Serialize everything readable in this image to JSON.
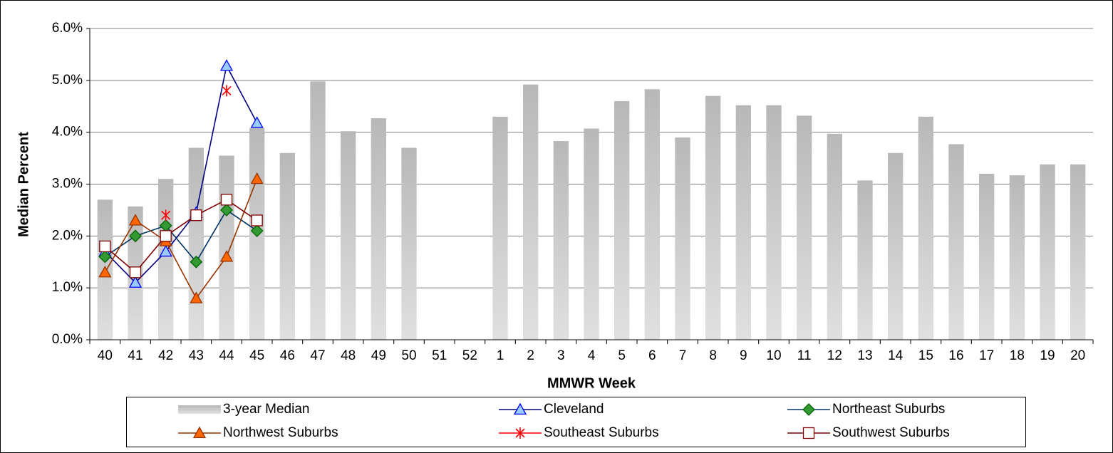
{
  "chart_data": {
    "type": "bar_line",
    "x_label": "MMWR Week",
    "y_label": "Median Percent",
    "categories": [
      "40",
      "41",
      "42",
      "43",
      "44",
      "45",
      "46",
      "47",
      "48",
      "49",
      "50",
      "51",
      "52",
      "1",
      "2",
      "3",
      "4",
      "5",
      "6",
      "7",
      "8",
      "9",
      "10",
      "11",
      "12",
      "13",
      "14",
      "15",
      "16",
      "17",
      "18",
      "19",
      "20"
    ],
    "ylim": [
      0,
      6
    ],
    "yticks": [
      {
        "value": 0,
        "label": "0.0%"
      },
      {
        "value": 1,
        "label": "1.0%"
      },
      {
        "value": 2,
        "label": "2.0%"
      },
      {
        "value": 3,
        "label": "3.0%"
      },
      {
        "value": 4,
        "label": "4.0%"
      },
      {
        "value": 5,
        "label": "5.0%"
      },
      {
        "value": 6,
        "label": "6.0%"
      }
    ],
    "grid": true,
    "series": [
      {
        "name": "3-year Median",
        "kind": "bar",
        "color": "#c8c8c8",
        "values": [
          2.7,
          2.57,
          3.1,
          3.7,
          3.55,
          4.08,
          3.6,
          4.98,
          4.02,
          4.27,
          3.7,
          null,
          null,
          4.3,
          4.92,
          3.83,
          4.07,
          4.6,
          4.83,
          3.9,
          4.7,
          4.52,
          4.52,
          4.32,
          3.97,
          3.07,
          3.6,
          4.3,
          3.77,
          3.2,
          3.17,
          3.38,
          3.38
        ]
      },
      {
        "name": "Cleveland",
        "kind": "line",
        "color": "#000080",
        "marker": "triangle",
        "marker_color": "#99ccff",
        "marker_stroke": "#0000ff",
        "values": [
          1.7,
          1.1,
          1.7,
          2.45,
          5.28,
          4.18,
          null,
          null,
          null,
          null,
          null,
          null,
          null,
          null,
          null,
          null,
          null,
          null,
          null,
          null,
          null,
          null,
          null,
          null,
          null,
          null,
          null,
          null,
          null,
          null,
          null,
          null,
          null
        ]
      },
      {
        "name": "Northeast Suburbs",
        "kind": "line",
        "color": "#003366",
        "marker": "diamond",
        "marker_color": "#339933",
        "marker_stroke": "#006600",
        "values": [
          1.6,
          2.0,
          2.2,
          1.5,
          2.5,
          2.1,
          null,
          null,
          null,
          null,
          null,
          null,
          null,
          null,
          null,
          null,
          null,
          null,
          null,
          null,
          null,
          null,
          null,
          null,
          null,
          null,
          null,
          null,
          null,
          null,
          null,
          null,
          null
        ]
      },
      {
        "name": "Northwest Suburbs",
        "kind": "line",
        "color": "#993300",
        "marker": "triangle",
        "marker_color": "#ff6600",
        "marker_stroke": "#993300",
        "values": [
          1.3,
          2.3,
          1.9,
          0.8,
          1.6,
          3.1,
          null,
          null,
          null,
          null,
          null,
          null,
          null,
          null,
          null,
          null,
          null,
          null,
          null,
          null,
          null,
          null,
          null,
          null,
          null,
          null,
          null,
          null,
          null,
          null,
          null,
          null,
          null
        ]
      },
      {
        "name": "Southeast Suburbs",
        "kind": "line",
        "color": "#ff0000",
        "marker": "star",
        "marker_color": "#ff0000",
        "marker_stroke": "#ff0000",
        "values": [
          null,
          null,
          2.4,
          null,
          4.8,
          null,
          null,
          null,
          null,
          null,
          null,
          null,
          null,
          null,
          null,
          null,
          null,
          null,
          null,
          null,
          null,
          null,
          null,
          null,
          null,
          null,
          null,
          null,
          null,
          null,
          null,
          null,
          null
        ]
      },
      {
        "name": "Southwest Suburbs",
        "kind": "line",
        "color": "#800000",
        "marker": "square",
        "marker_color": "#ffffff",
        "marker_stroke": "#800000",
        "values": [
          1.8,
          1.3,
          2.0,
          2.4,
          2.7,
          2.3,
          null,
          null,
          null,
          null,
          null,
          null,
          null,
          null,
          null,
          null,
          null,
          null,
          null,
          null,
          null,
          null,
          null,
          null,
          null,
          null,
          null,
          null,
          null,
          null,
          null,
          null,
          null
        ]
      }
    ]
  }
}
